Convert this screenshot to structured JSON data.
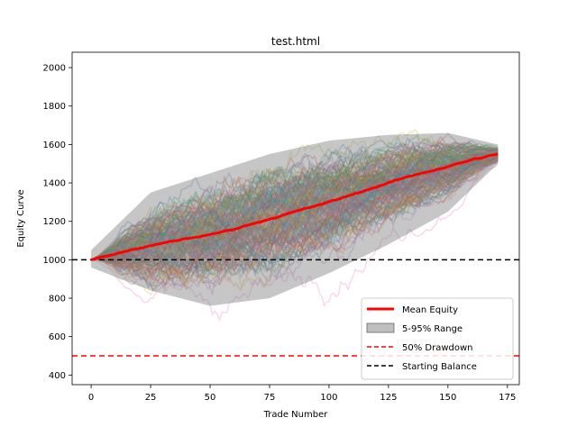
{
  "chart_data": {
    "type": "line",
    "title": "test.html",
    "xlabel": "Trade Number",
    "ylabel": "Equity Curve",
    "xlim": [
      -8,
      180
    ],
    "ylim": [
      350,
      2080
    ],
    "x_ticks": [
      0,
      25,
      50,
      75,
      100,
      125,
      150,
      175
    ],
    "y_ticks": [
      400,
      600,
      800,
      1000,
      1200,
      1400,
      1600,
      1800,
      2000
    ],
    "num_trades": 171,
    "num_simulations": 200,
    "grid": false,
    "legend_position": "lower-right",
    "series": [
      {
        "name": "Mean Equity",
        "color": "#ff0000",
        "x": [
          0,
          10,
          20,
          30,
          40,
          50,
          60,
          70,
          80,
          90,
          100,
          110,
          120,
          130,
          140,
          150,
          160,
          171
        ],
        "values": [
          1000,
          1030,
          1060,
          1085,
          1110,
          1130,
          1160,
          1195,
          1230,
          1265,
          1300,
          1340,
          1380,
          1420,
          1455,
          1485,
          1520,
          1550
        ]
      }
    ],
    "band": {
      "name": "5-95% Range",
      "color": "#808080",
      "x": [
        0,
        25,
        50,
        75,
        100,
        125,
        150,
        171
      ],
      "lower": [
        960,
        840,
        760,
        800,
        930,
        1080,
        1250,
        1500
      ],
      "upper": [
        1050,
        1350,
        1450,
        1550,
        1620,
        1650,
        1660,
        1600
      ]
    },
    "reference_lines": [
      {
        "name": "50% Drawdown",
        "y": 500,
        "color": "#ff0000",
        "style": "dashed"
      },
      {
        "name": "Starting Balance",
        "y": 1000,
        "color": "#000000",
        "style": "dashed"
      }
    ],
    "legend": [
      "Mean Equity",
      "5-95% Range",
      "50% Drawdown",
      "Starting Balance"
    ],
    "simulation_colors": [
      "#1f77b4",
      "#ff7f0e",
      "#2ca02c",
      "#d62728",
      "#9467bd",
      "#8c564b",
      "#e377c2",
      "#7f7f7f",
      "#bcbd22",
      "#17becf"
    ]
  }
}
